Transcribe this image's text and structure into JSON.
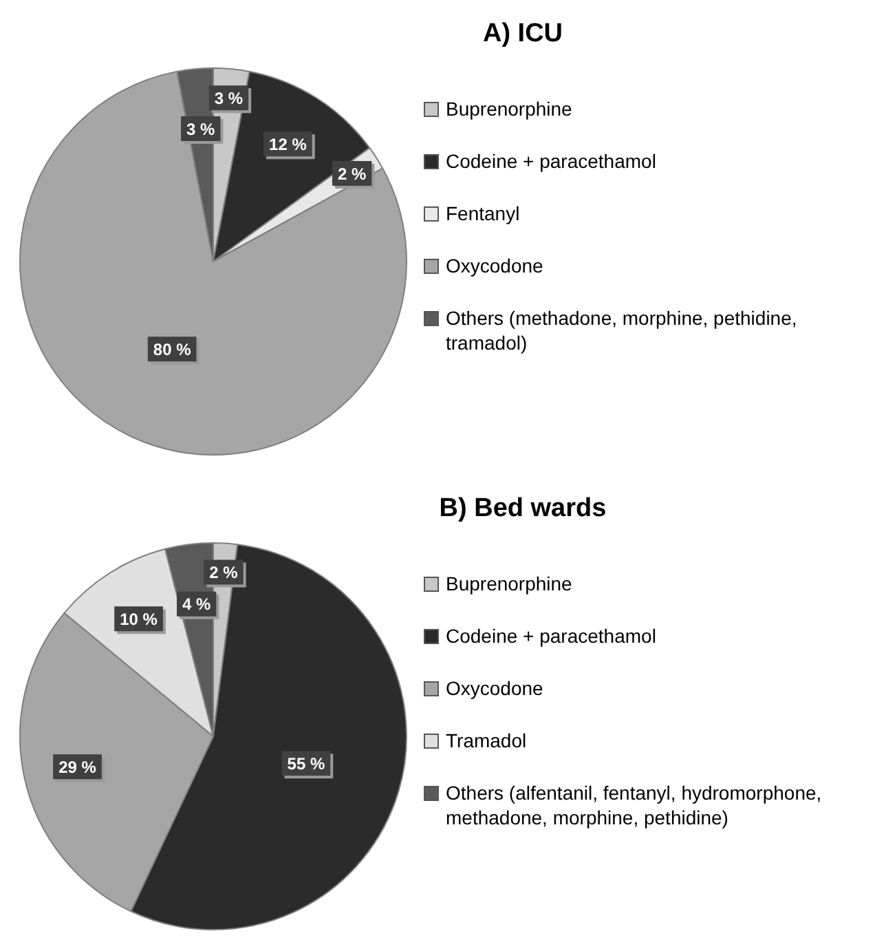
{
  "chart_data": [
    {
      "type": "pie",
      "title": "A) ICU",
      "legend": "right",
      "categories": [
        "Buprenorphine",
        "Codeine + paracethamol",
        "Fentanyl",
        "Oxycodone",
        "Others (methadone, morphine, pethidine, tramadol)"
      ],
      "values": [
        3,
        12,
        2,
        80,
        3
      ],
      "value_labels": [
        "3 %",
        "12 %",
        "2 %",
        "80 %",
        "3 %"
      ],
      "colors": [
        "#c8c8c8",
        "#2b2b2b",
        "#e8e8e8",
        "#a6a6a6",
        "#5a5a5a"
      ]
    },
    {
      "type": "pie",
      "title": "B) Bed wards",
      "legend": "right",
      "categories": [
        "Buprenorphine",
        "Codeine + paracethamol",
        "Oxycodone",
        "Tramadol",
        "Others (alfentanil, fentanyl, hydromorphone, methadone, morphine, pethidine)"
      ],
      "values": [
        2,
        55,
        29,
        10,
        4
      ],
      "value_labels": [
        "2 %",
        "55 %",
        "29 %",
        "10 %",
        "4 %"
      ],
      "colors": [
        "#c8c8c8",
        "#2b2b2b",
        "#a6a6a6",
        "#e0e0e0",
        "#5a5a5a"
      ]
    }
  ]
}
